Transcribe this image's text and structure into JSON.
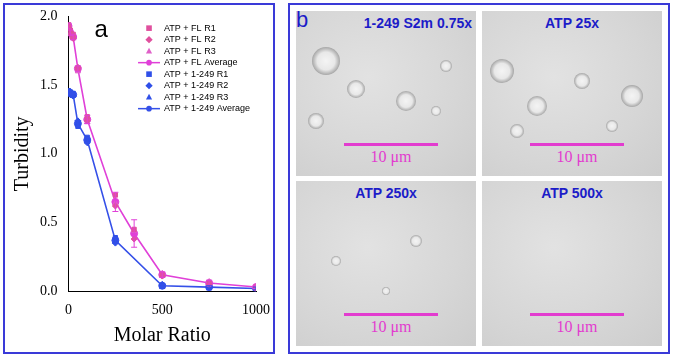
{
  "chart_data": {
    "type": "line",
    "annotations": [
      "a"
    ],
    "x_label": "Molar Ratio",
    "y_label": "Turbidity",
    "xlim": [
      0,
      1000
    ],
    "xticks": [
      0,
      500,
      1000
    ],
    "ylim": [
      0,
      2
    ],
    "yticks": [
      {
        "value": 0,
        "label": "0.0"
      },
      {
        "value": 0.5,
        "label": "0.5"
      },
      {
        "value": 1,
        "label": "1.0"
      },
      {
        "value": 1.5,
        "label": "1.5"
      },
      {
        "value": 2,
        "label": "2.0"
      }
    ],
    "grid": false,
    "legend": "upper right",
    "series": [
      {
        "name": "ATP + FL R1",
        "type": "scatter",
        "color": "#e0509e",
        "marker": "square",
        "x": [
          0,
          10,
          25,
          50,
          100,
          250,
          350,
          500,
          750,
          1000
        ],
        "values": [
          1.94,
          1.9,
          1.87,
          1.62,
          1.27,
          0.7,
          0.45,
          0.12,
          0.06,
          0.03
        ]
      },
      {
        "name": "ATP + FL R2",
        "type": "scatter",
        "color": "#e0509e",
        "marker": "diamond",
        "x": [
          0,
          10,
          25,
          50,
          100,
          250,
          350,
          500,
          750,
          1000
        ],
        "values": [
          1.92,
          1.87,
          1.84,
          1.63,
          1.24,
          0.62,
          0.38,
          0.11,
          0.05,
          0.02
        ]
      },
      {
        "name": "ATP + FL R3",
        "type": "scatter",
        "color": "#e060c8",
        "marker": "triangle",
        "x": [
          0,
          10,
          25,
          50,
          100,
          250,
          350,
          500,
          750,
          1000
        ],
        "values": [
          1.93,
          1.88,
          1.85,
          1.6,
          1.23,
          0.64,
          0.44,
          0.13,
          0.07,
          0.03
        ]
      },
      {
        "name": "ATP + FL Average",
        "type": "line",
        "color": "#e040d8",
        "marker": "circle",
        "line_style": "solid",
        "x": [
          0,
          10,
          25,
          50,
          100,
          250,
          350,
          500,
          750,
          1000
        ],
        "values": [
          1.93,
          1.88,
          1.85,
          1.62,
          1.25,
          0.65,
          0.42,
          0.12,
          0.06,
          0.03
        ],
        "errors": [
          0.02,
          0.02,
          0.02,
          0.02,
          0.03,
          0.07,
          0.1,
          0.02,
          0.02,
          0.01
        ]
      },
      {
        "name": "ATP + 1-249 R1",
        "type": "scatter",
        "color": "#2f4fe8",
        "marker": "square",
        "x": [
          0,
          10,
          25,
          50,
          100,
          250,
          500,
          750,
          1000
        ],
        "values": [
          1.46,
          1.45,
          1.44,
          1.2,
          1.12,
          0.39,
          0.04,
          0.03,
          0.02
        ]
      },
      {
        "name": "ATP + 1-249 R2",
        "type": "scatter",
        "color": "#2f4fe8",
        "marker": "diamond",
        "x": [
          0,
          10,
          25,
          50,
          100,
          250,
          500,
          750,
          1000
        ],
        "values": [
          1.44,
          1.43,
          1.42,
          1.24,
          1.08,
          0.35,
          0.05,
          0.03,
          0.02
        ]
      },
      {
        "name": "ATP + 1-249 R3",
        "type": "scatter",
        "color": "#2f4fe8",
        "marker": "triangle",
        "x": [
          0,
          10,
          25,
          50,
          100,
          250,
          500,
          750,
          1000
        ],
        "values": [
          1.45,
          1.44,
          1.43,
          1.22,
          1.1,
          0.36,
          0.03,
          0.02,
          0.02
        ]
      },
      {
        "name": "ATP + 1-249 Average",
        "type": "line",
        "color": "#3550e8",
        "marker": "circle",
        "line_style": "solid",
        "x": [
          0,
          10,
          25,
          50,
          100,
          250,
          500,
          750,
          1000
        ],
        "values": [
          1.45,
          1.44,
          1.43,
          1.22,
          1.1,
          0.37,
          0.04,
          0.03,
          0.02
        ],
        "errors": [
          0.01,
          0.01,
          0.01,
          0.02,
          0.02,
          0.02,
          0.01,
          0.01,
          0.01
        ]
      }
    ]
  },
  "micrographs": {
    "label": "b",
    "images": [
      {
        "title": "1-249 S2m 0.75x",
        "scale_bar": "10 μm"
      },
      {
        "title": "ATP 25x",
        "scale_bar": "10 μm"
      },
      {
        "title": "ATP 250x",
        "scale_bar": "10 μm"
      },
      {
        "title": "ATP 500x",
        "scale_bar": "10 μm"
      }
    ]
  }
}
